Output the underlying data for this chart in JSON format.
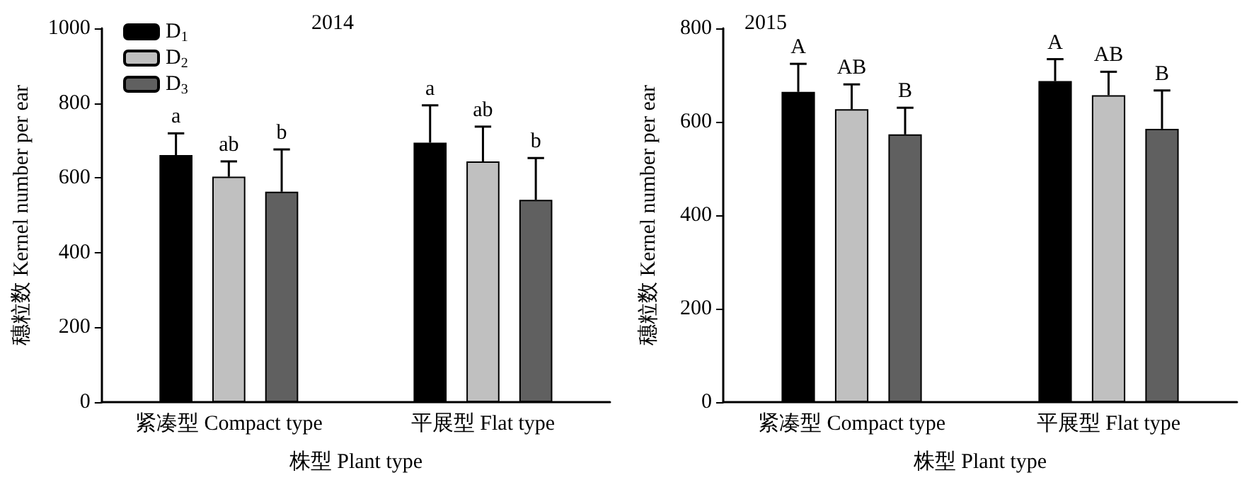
{
  "chart_data": [
    {
      "type": "bar",
      "title": "2014",
      "xlabel": "株型 Plant type",
      "ylabel": "穗粒数 Kernel number per ear",
      "categories": [
        "紧凑型 Compact type",
        "平展型 Flat type"
      ],
      "series": [
        {
          "name": "D$_{1}$",
          "color": "#000000",
          "values": [
            661,
            694
          ],
          "errors": [
            [
              661,
              719
            ],
            [
              694,
              794
            ]
          ]
        },
        {
          "name": "D$_{2}$",
          "color": "#c0c0c0",
          "values": [
            603,
            644
          ],
          "errors": [
            [
              603,
              644
            ],
            [
              644,
              737
            ]
          ]
        },
        {
          "name": "D$_{3}$",
          "color": "#606060",
          "values": [
            563,
            541
          ],
          "errors": [
            [
              563,
              676
            ],
            [
              541,
              653
            ]
          ]
        }
      ],
      "ylim": [
        0,
        1000
      ],
      "yticks": [
        0,
        200,
        400,
        600,
        800,
        1000
      ],
      "grid": false,
      "legend": "top left",
      "annotations": [
        "a",
        "ab",
        "b",
        "a",
        "ab",
        "b"
      ]
    },
    {
      "type": "bar",
      "title": "2015",
      "xlabel": "株型 Plant type",
      "ylabel": "穗粒数 Kernel number per ear",
      "categories": [
        "紧凑型 Compact type",
        "平展型 Flat type"
      ],
      "series": [
        {
          "color": "#000000",
          "values": [
            664,
            687
          ],
          "errors": [
            [
              664,
              724
            ],
            [
              687,
              734
            ]
          ]
        },
        {
          "color": "#c0c0c0",
          "values": [
            627,
            657
          ],
          "errors": [
            [
              627,
              680
            ],
            [
              657,
              707
            ]
          ]
        },
        {
          "color": "#606060",
          "values": [
            573,
            585
          ],
          "errors": [
            [
              573,
              630
            ],
            [
              585,
              667
            ]
          ]
        }
      ],
      "ylim": [
        0,
        800
      ],
      "yticks": [
        0,
        200,
        400,
        600,
        800
      ],
      "grid": false,
      "legend": false,
      "annotations": [
        "A",
        "AB",
        "B",
        "A",
        "AB",
        "B"
      ]
    }
  ]
}
